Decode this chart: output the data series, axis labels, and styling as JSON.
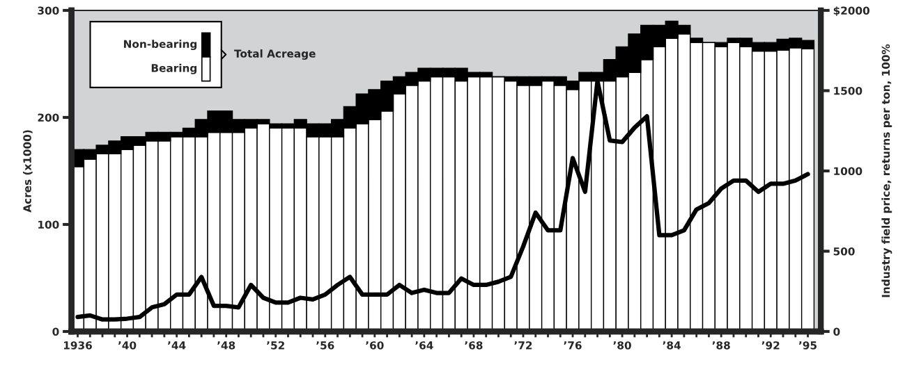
{
  "chart_data": {
    "type": "bar",
    "stacked": true,
    "categories": [
      "1936",
      null,
      null,
      null,
      "’40",
      null,
      null,
      null,
      "’44",
      null,
      null,
      null,
      "’48",
      null,
      null,
      null,
      "’52",
      null,
      null,
      null,
      "’56",
      null,
      null,
      null,
      "’60",
      null,
      null,
      null,
      "’64",
      null,
      null,
      null,
      "’68",
      null,
      null,
      null,
      "’72",
      null,
      null,
      null,
      "’76",
      null,
      null,
      null,
      "’80",
      null,
      null,
      null,
      "’84",
      null,
      null,
      null,
      "’88",
      null,
      null,
      null,
      "’92",
      null,
      null,
      "’95"
    ],
    "series": [
      {
        "name": "Bearing",
        "color": "#ffffff",
        "values": [
          154,
          161,
          166,
          166,
          170,
          174,
          178,
          178,
          182,
          182,
          182,
          186,
          186,
          186,
          190,
          194,
          190,
          190,
          190,
          182,
          182,
          182,
          190,
          194,
          198,
          206,
          222,
          230,
          234,
          238,
          238,
          234,
          238,
          238,
          238,
          234,
          230,
          230,
          234,
          230,
          226,
          234,
          234,
          234,
          238,
          242,
          254,
          266,
          274,
          278,
          270,
          270,
          266,
          270,
          266,
          262,
          262,
          263,
          265,
          264
        ]
      },
      {
        "name": "Non-bearing",
        "color": "#000000",
        "values": [
          16,
          9,
          8,
          12,
          12,
          8,
          8,
          8,
          4,
          8,
          16,
          20,
          20,
          12,
          8,
          4,
          4,
          4,
          8,
          12,
          12,
          16,
          20,
          28,
          28,
          28,
          16,
          12,
          12,
          8,
          8,
          12,
          4,
          4,
          0,
          4,
          8,
          8,
          4,
          8,
          8,
          8,
          8,
          20,
          28,
          36,
          32,
          20,
          16,
          8,
          4,
          0,
          4,
          4,
          8,
          8,
          8,
          10,
          9,
          8
        ]
      },
      {
        "type": "line",
        "axis": "y2",
        "color": "#000000",
        "values": [
          90,
          100,
          75,
          75,
          80,
          90,
          150,
          170,
          230,
          230,
          340,
          160,
          160,
          150,
          290,
          210,
          180,
          180,
          210,
          200,
          230,
          290,
          340,
          230,
          230,
          230,
          290,
          240,
          260,
          240,
          240,
          330,
          290,
          290,
          310,
          340,
          530,
          740,
          630,
          630,
          1080,
          870,
          1560,
          1190,
          1180,
          1270,
          1340,
          600,
          600,
          630,
          760,
          800,
          890,
          940,
          940,
          870,
          920,
          920,
          940,
          980
        ]
      }
    ],
    "ylabel": "Acres (x1000)",
    "y2label": "Industry field price, returns per ton, 100%",
    "ylim": [
      0,
      300
    ],
    "yticks": [
      0,
      100,
      200,
      300
    ],
    "y2lim": [
      0,
      2000
    ],
    "y2ticks": [
      0,
      500,
      1000,
      1500,
      {
        "value": 2000,
        "label": "$2000"
      }
    ],
    "legend": "top left",
    "legend_title": "Total Acreage",
    "grid": false,
    "marker": "none",
    "line_style": "solid"
  }
}
